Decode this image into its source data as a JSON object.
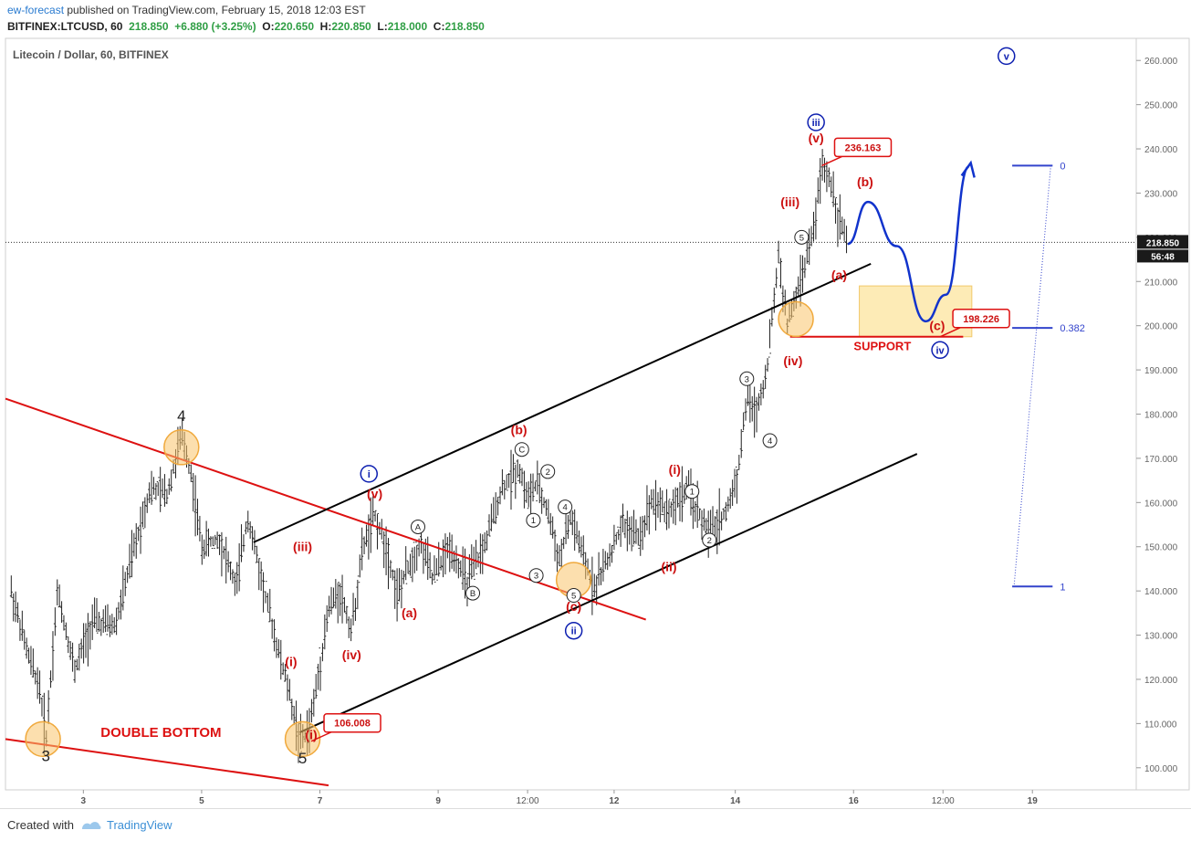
{
  "header": {
    "author": "ew-forecast",
    "published_text": "published on TradingView.com, February 15, 2018 12:03 EST",
    "symbol": "BITFINEX:LTCUSD, 60",
    "last": "218.850",
    "change": "+6.880 (+3.25%)",
    "o_label": "O:",
    "o_value": "220.650",
    "h_label": "H:",
    "h_value": "220.850",
    "l_label": "L:",
    "l_value": "218.000",
    "c_label": "C:",
    "c_value": "218.850"
  },
  "chart_title": "Litecoin / Dollar, 60, BITFINEX",
  "footer": {
    "created_with": "Created with",
    "brand": "TradingView"
  },
  "colors": {
    "wave_red": "#cc1111",
    "wave_blue": "#0d1fb0",
    "support_fill": "#fdebb6",
    "circle_fill": "#f9c46b",
    "candle": "#222222",
    "path_blue": "#1133cc",
    "fib": "#3344cc"
  },
  "chart_data": {
    "type": "candlestick",
    "title": "Litecoin / Dollar, 60, BITFINEX",
    "ylim": [
      95,
      265
    ],
    "y_ticks": [
      100,
      110,
      120,
      130,
      140,
      150,
      160,
      170,
      180,
      190,
      200,
      210,
      220,
      230,
      240,
      250,
      260
    ],
    "x_tick_labels": [
      {
        "label": "3",
        "x": 2.15
      },
      {
        "label": "5",
        "x": 4.2
      },
      {
        "label": "7",
        "x": 6.25
      },
      {
        "label": "9",
        "x": 8.3
      },
      {
        "label": "12:00",
        "x": 9.85
      },
      {
        "label": "12",
        "x": 11.35
      },
      {
        "label": "14",
        "x": 13.45
      },
      {
        "label": "16",
        "x": 15.5
      },
      {
        "label": "12:00",
        "x": 17.05
      },
      {
        "label": "19",
        "x": 18.6
      }
    ],
    "x_range": [
      0.8,
      20.4
    ],
    "current_price": {
      "value": 218.85,
      "label": "218.850",
      "countdown": "56:48"
    },
    "price_path": [
      [
        0.9,
        140
      ],
      [
        1.2,
        125
      ],
      [
        1.4,
        118
      ],
      [
        1.5,
        106
      ],
      [
        1.7,
        140
      ],
      [
        2.0,
        122
      ],
      [
        2.3,
        133
      ],
      [
        2.7,
        132
      ],
      [
        3.0,
        148
      ],
      [
        3.3,
        163
      ],
      [
        3.6,
        162
      ],
      [
        3.85,
        175
      ],
      [
        4.0,
        168
      ],
      [
        4.2,
        150
      ],
      [
        4.5,
        152
      ],
      [
        4.8,
        141
      ],
      [
        5.0,
        157
      ],
      [
        5.2,
        145
      ],
      [
        5.5,
        128
      ],
      [
        5.7,
        118
      ],
      [
        5.9,
        106
      ],
      [
        6.05,
        108
      ],
      [
        6.2,
        119
      ],
      [
        6.4,
        136
      ],
      [
        6.6,
        140
      ],
      [
        6.8,
        131
      ],
      [
        7.0,
        150
      ],
      [
        7.2,
        157
      ],
      [
        7.4,
        150
      ],
      [
        7.6,
        139
      ],
      [
        7.8,
        146
      ],
      [
        8.0,
        151
      ],
      [
        8.2,
        143
      ],
      [
        8.5,
        150
      ],
      [
        8.8,
        142
      ],
      [
        9.1,
        150
      ],
      [
        9.4,
        163
      ],
      [
        9.7,
        168
      ],
      [
        9.85,
        161
      ],
      [
        10.0,
        164
      ],
      [
        10.2,
        158
      ],
      [
        10.4,
        147
      ],
      [
        10.6,
        157
      ],
      [
        10.8,
        148
      ],
      [
        11.0,
        141
      ],
      [
        11.2,
        146
      ],
      [
        11.5,
        155
      ],
      [
        11.8,
        152
      ],
      [
        12.0,
        161
      ],
      [
        12.3,
        158
      ],
      [
        12.6,
        163
      ],
      [
        12.8,
        158
      ],
      [
        13.0,
        153
      ],
      [
        13.3,
        158
      ],
      [
        13.5,
        167
      ],
      [
        13.65,
        184
      ],
      [
        13.8,
        180
      ],
      [
        14.0,
        190
      ],
      [
        14.2,
        216
      ],
      [
        14.35,
        200
      ],
      [
        14.6,
        211
      ],
      [
        14.8,
        221
      ],
      [
        14.95,
        236
      ],
      [
        15.1,
        233
      ],
      [
        15.25,
        224
      ],
      [
        15.4,
        218.85
      ]
    ],
    "trendlines": [
      {
        "name": "falling-wedge-upper",
        "color": "#dd1111",
        "points": [
          [
            0.8,
            183.5
          ],
          [
            11.9,
            133.5
          ]
        ]
      },
      {
        "name": "falling-wedge-lower",
        "color": "#dd1111",
        "points": [
          [
            0.8,
            106.5
          ],
          [
            6.4,
            96
          ]
        ]
      },
      {
        "name": "channel-upper",
        "color": "#000000",
        "points": [
          [
            5.1,
            151
          ]
        ],
        "to": [
          [
            15.8,
            214
          ]
        ]
      },
      {
        "name": "channel-lower",
        "color": "#000000",
        "points": [
          [
            5.9,
            108
          ]
        ],
        "to": [
          [
            16.6,
            171
          ]
        ]
      },
      {
        "name": "support-line",
        "color": "#dd1111",
        "points": [
          [
            14.4,
            197.5
          ],
          [
            17.4,
            197.5
          ]
        ]
      }
    ],
    "projection_path": [
      [
        15.4,
        218.5
      ],
      [
        15.75,
        228
      ],
      [
        16.25,
        218
      ],
      [
        16.75,
        201
      ],
      [
        17.1,
        207
      ],
      [
        17.5,
        236
      ]
    ],
    "support_zone": {
      "x": [
        15.6,
        17.55
      ],
      "y": [
        197.5,
        209
      ]
    },
    "fibonacci": {
      "levels": [
        {
          "label": "0",
          "value": 236.2
        },
        {
          "label": "0.382",
          "value": 199.5
        },
        {
          "label": "1",
          "value": 141.0
        }
      ]
    },
    "price_labels": [
      {
        "text": "236.163",
        "at": [
          14.95,
          236.2
        ]
      },
      {
        "text": "106.008",
        "at": [
          6.1,
          106
        ]
      },
      {
        "text": "198.226",
        "at": [
          17.0,
          197.5
        ]
      }
    ],
    "text_labels": [
      {
        "text": "DOUBLE BOTTOM",
        "color": "red",
        "style": "caps"
      },
      {
        "text": "SUPPORT",
        "color": "red",
        "style": "caps"
      }
    ],
    "wave_labels": [
      {
        "text": "3",
        "style": "plain",
        "at": [
          1.5,
          101.5
        ]
      },
      {
        "text": "4",
        "style": "plain",
        "at": [
          3.85,
          178.5
        ]
      },
      {
        "text": "5",
        "style": "plain",
        "at": [
          5.95,
          101
        ]
      },
      {
        "text": "(i)",
        "style": "red",
        "at": [
          6.1,
          106.5
        ]
      },
      {
        "text": "(i)",
        "style": "red",
        "at": [
          5.75,
          123
        ]
      },
      {
        "text": "(ii)",
        "style": "red",
        "at": [
          12.3,
          144.5
        ]
      },
      {
        "text": "(iii)",
        "style": "red",
        "at": [
          5.95,
          149
        ]
      },
      {
        "text": "(iv)",
        "style": "red",
        "at": [
          6.8,
          124.5
        ]
      },
      {
        "text": "(v)",
        "style": "red",
        "at": [
          7.2,
          161
        ]
      },
      {
        "text": "(a)",
        "style": "red",
        "at": [
          7.8,
          134
        ]
      },
      {
        "text": "(b)",
        "style": "red",
        "at": [
          9.7,
          175.5
        ]
      },
      {
        "text": "(c)",
        "style": "red",
        "at": [
          10.65,
          135.5
        ]
      },
      {
        "text": "(i)",
        "style": "red",
        "at": [
          12.4,
          166.5
        ]
      },
      {
        "text": "(iii)",
        "style": "red",
        "at": [
          14.4,
          227
        ]
      },
      {
        "text": "(iv)",
        "style": "red",
        "at": [
          14.45,
          191
        ]
      },
      {
        "text": "(v)",
        "style": "red",
        "at": [
          14.85,
          241.5
        ]
      },
      {
        "text": "(a)",
        "style": "red",
        "at": [
          15.25,
          210.5
        ]
      },
      {
        "text": "(b)",
        "style": "red",
        "at": [
          15.7,
          231.5
        ]
      },
      {
        "text": "(c)",
        "style": "red",
        "at": [
          16.95,
          199
        ]
      },
      {
        "text": "i",
        "style": "blue-circle",
        "at": [
          7.1,
          166.5
        ]
      },
      {
        "text": "ii",
        "style": "blue-circle",
        "at": [
          10.65,
          131
        ]
      },
      {
        "text": "iii",
        "style": "blue-circle",
        "at": [
          14.85,
          246
        ]
      },
      {
        "text": "iv",
        "style": "blue-circle",
        "at": [
          17.0,
          194.5
        ]
      },
      {
        "text": "v",
        "style": "blue-circle",
        "at": [
          18.15,
          261
        ]
      },
      {
        "text": "A",
        "style": "black-circle",
        "at": [
          7.95,
          154.5
        ]
      },
      {
        "text": "B",
        "style": "black-circle",
        "at": [
          8.9,
          139.5
        ]
      },
      {
        "text": "C",
        "style": "black-circle",
        "at": [
          9.75,
          172
        ]
      },
      {
        "text": "1",
        "style": "black-circle",
        "at": [
          9.95,
          156
        ]
      },
      {
        "text": "2",
        "style": "black-circle",
        "at": [
          10.2,
          167
        ]
      },
      {
        "text": "3",
        "style": "black-circle",
        "at": [
          10.0,
          143.5
        ]
      },
      {
        "text": "4",
        "style": "black-circle",
        "at": [
          10.5,
          159
        ]
      },
      {
        "text": "5",
        "style": "black-circle",
        "at": [
          10.65,
          139
        ]
      },
      {
        "text": "1",
        "style": "black-circle",
        "at": [
          12.7,
          162.5
        ]
      },
      {
        "text": "2",
        "style": "black-circle",
        "at": [
          13.0,
          151.5
        ]
      },
      {
        "text": "3",
        "style": "black-circle",
        "at": [
          13.65,
          188
        ]
      },
      {
        "text": "4",
        "style": "black-circle",
        "at": [
          14.05,
          174
        ]
      },
      {
        "text": "5",
        "style": "black-circle",
        "at": [
          14.6,
          220
        ]
      }
    ],
    "highlight_circles": [
      [
        1.45,
        106.5
      ],
      [
        3.85,
        172.5
      ],
      [
        5.95,
        106.5
      ],
      [
        10.65,
        142.5
      ],
      [
        14.5,
        201.5
      ]
    ]
  }
}
